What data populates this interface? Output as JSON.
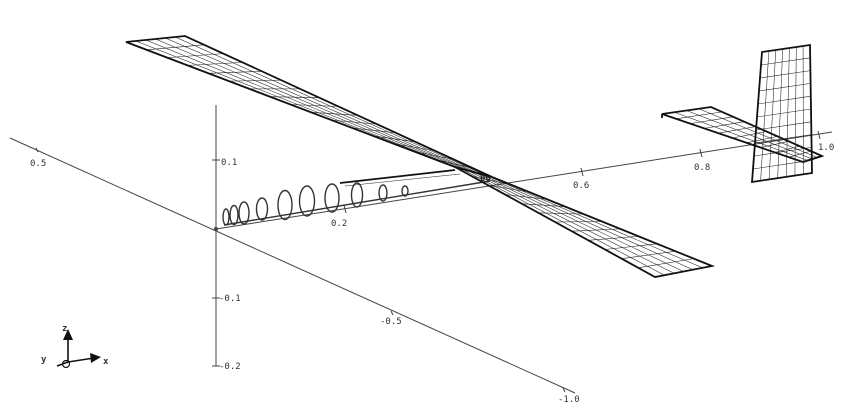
{
  "axes": {
    "y_ticks": [
      "0.5",
      "-0.5",
      "-1.0"
    ],
    "z_ticks": [
      "0.1",
      "-0.1",
      "-0.2"
    ],
    "x_ticks": [
      "0.2",
      "0.6",
      "0.8",
      "1.0"
    ],
    "x_partial_tick": "00"
  },
  "triad": {
    "z_label": "z",
    "y_label": "y",
    "x_label": "x"
  }
}
